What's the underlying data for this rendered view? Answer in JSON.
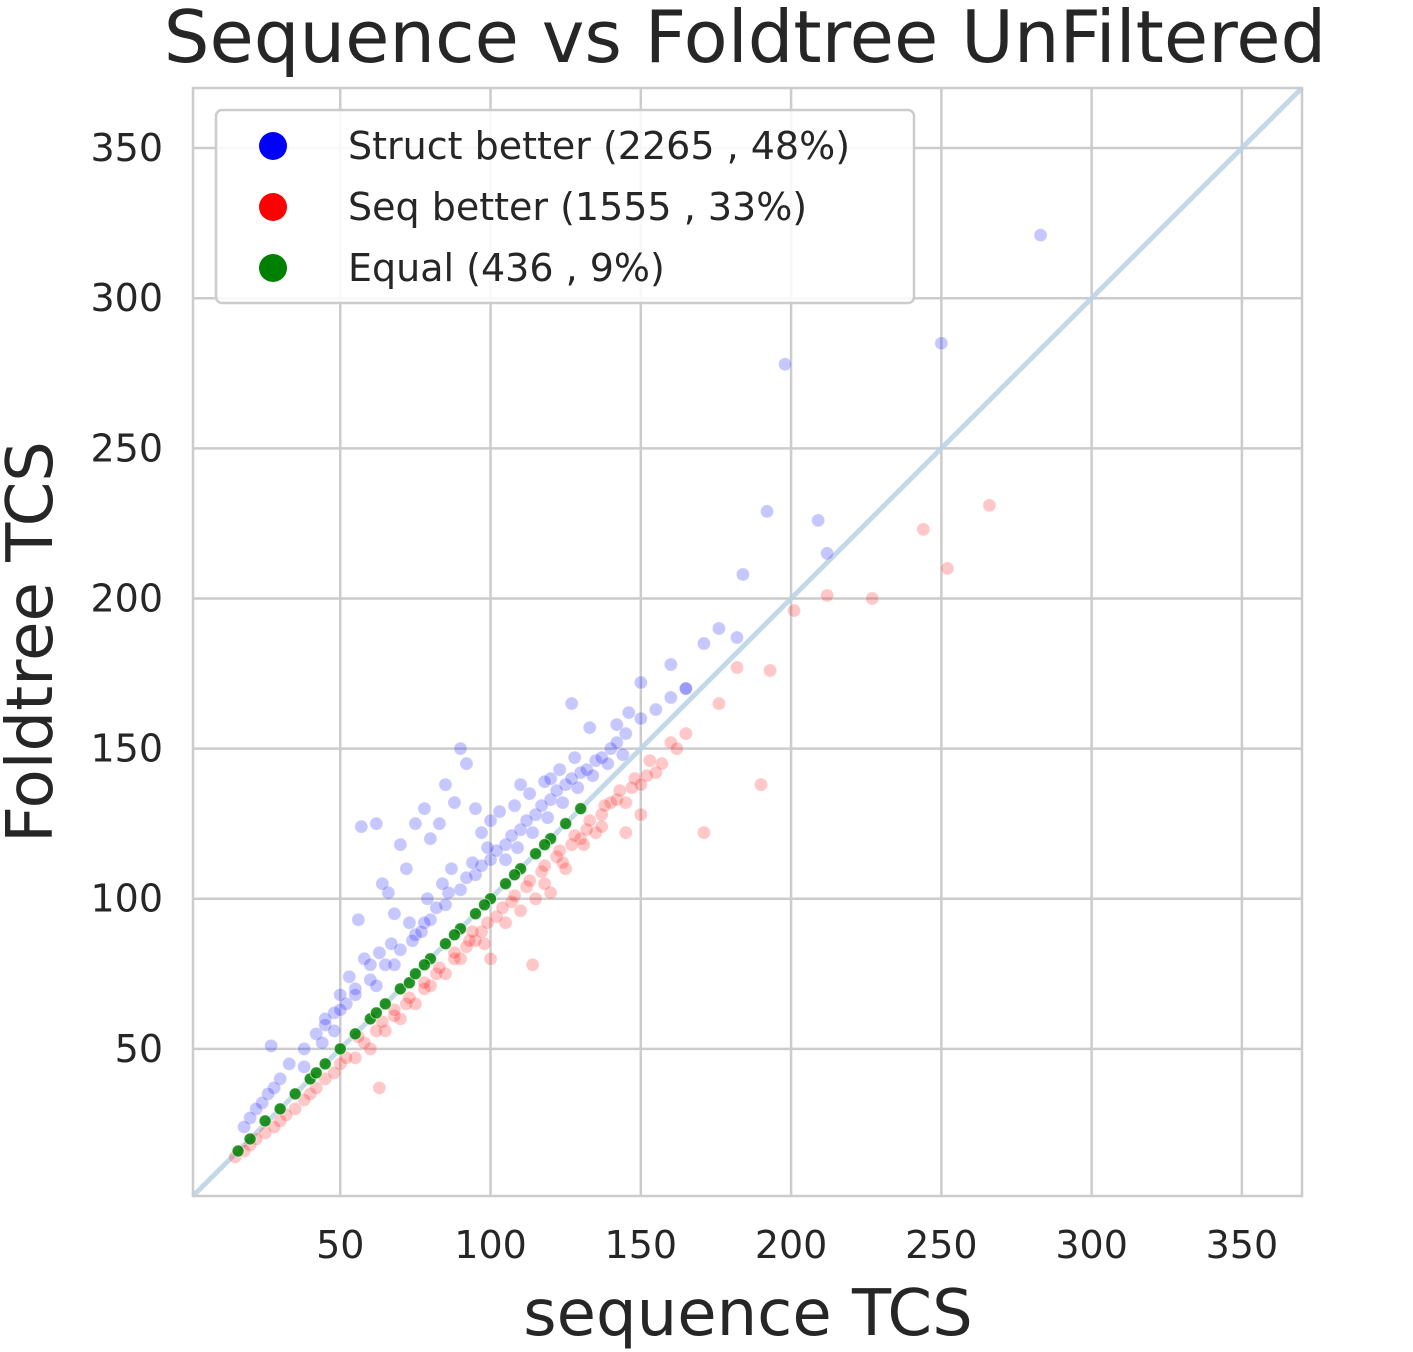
{
  "chart_data": {
    "type": "scatter",
    "title": "Sequence vs Foldtree UnFiltered",
    "xlabel": "sequence TCS",
    "ylabel": "Foldtree TCS",
    "xlim": [
      1,
      370
    ],
    "ylim": [
      1,
      370
    ],
    "xticks": [
      50,
      100,
      150,
      200,
      250,
      300,
      350
    ],
    "yticks": [
      50,
      100,
      150,
      200,
      250,
      300,
      350
    ],
    "grid": true,
    "legend_position": "upper-left",
    "diagonal_line": {
      "from": [
        1,
        1
      ],
      "to": [
        370,
        370
      ],
      "color": "#b8d2e6"
    },
    "series": [
      {
        "name": "Struct better (2265 , 48%)",
        "color": "#0000ff",
        "count": 2265,
        "percent": 48,
        "points": [
          [
            283,
            321
          ],
          [
            250,
            285
          ],
          [
            198,
            278
          ],
          [
            192,
            229
          ],
          [
            209,
            226
          ],
          [
            212,
            215
          ],
          [
            184,
            208
          ],
          [
            182,
            187
          ],
          [
            171,
            185
          ],
          [
            176,
            190
          ],
          [
            165,
            170
          ],
          [
            160,
            178
          ],
          [
            150,
            172
          ],
          [
            146,
            162
          ],
          [
            142,
            158
          ],
          [
            133,
            157
          ],
          [
            127,
            165
          ],
          [
            120,
            140
          ],
          [
            110,
            138
          ],
          [
            100,
            126
          ],
          [
            95,
            130
          ],
          [
            90,
            150
          ],
          [
            92,
            145
          ],
          [
            85,
            138
          ],
          [
            88,
            132
          ],
          [
            83,
            125
          ],
          [
            78,
            130
          ],
          [
            80,
            120
          ],
          [
            75,
            125
          ],
          [
            57,
            124
          ],
          [
            62,
            125
          ],
          [
            70,
            118
          ],
          [
            72,
            110
          ],
          [
            66,
            102
          ],
          [
            64,
            105
          ],
          [
            68,
            95
          ],
          [
            56,
            93
          ],
          [
            58,
            80
          ],
          [
            60,
            78
          ],
          [
            55,
            70
          ],
          [
            52,
            65
          ],
          [
            48,
            62
          ],
          [
            45,
            60
          ],
          [
            42,
            55
          ],
          [
            38,
            50
          ],
          [
            33,
            45
          ],
          [
            30,
            40
          ],
          [
            28,
            37
          ],
          [
            26,
            35
          ],
          [
            24,
            32
          ],
          [
            22,
            30
          ],
          [
            20,
            27
          ],
          [
            18,
            24
          ],
          [
            45,
            58
          ],
          [
            50,
            63
          ],
          [
            55,
            68
          ],
          [
            60,
            73
          ],
          [
            65,
            78
          ],
          [
            70,
            83
          ],
          [
            75,
            88
          ],
          [
            80,
            93
          ],
          [
            85,
            98
          ],
          [
            90,
            103
          ],
          [
            95,
            108
          ],
          [
            100,
            113
          ],
          [
            105,
            118
          ],
          [
            110,
            123
          ],
          [
            115,
            128
          ],
          [
            120,
            133
          ],
          [
            125,
            138
          ],
          [
            130,
            142
          ],
          [
            135,
            146
          ],
          [
            140,
            150
          ],
          [
            145,
            155
          ],
          [
            150,
            160
          ],
          [
            155,
            163
          ],
          [
            160,
            167
          ],
          [
            165,
            170
          ],
          [
            38,
            44
          ],
          [
            44,
            52
          ],
          [
            48,
            56
          ],
          [
            62,
            71
          ],
          [
            68,
            78
          ],
          [
            74,
            86
          ],
          [
            78,
            92
          ],
          [
            82,
            97
          ],
          [
            86,
            102
          ],
          [
            92,
            107
          ],
          [
            97,
            111
          ],
          [
            102,
            116
          ],
          [
            107,
            121
          ],
          [
            112,
            126
          ],
          [
            117,
            131
          ],
          [
            122,
            136
          ],
          [
            127,
            140
          ],
          [
            132,
            143
          ],
          [
            137,
            147
          ],
          [
            142,
            152
          ],
          [
            77,
            89
          ],
          [
            87,
            110
          ],
          [
            97,
            122
          ],
          [
            103,
            129
          ],
          [
            108,
            131
          ],
          [
            113,
            135
          ],
          [
            118,
            139
          ],
          [
            123,
            143
          ],
          [
            128,
            147
          ],
          [
            84,
            105
          ],
          [
            79,
            100
          ],
          [
            73,
            92
          ],
          [
            67,
            85
          ],
          [
            63,
            82
          ],
          [
            53,
            74
          ],
          [
            50,
            68
          ],
          [
            105,
            113
          ],
          [
            109,
            117
          ],
          [
            114,
            122
          ],
          [
            119,
            127
          ],
          [
            124,
            132
          ],
          [
            129,
            137
          ],
          [
            134,
            141
          ],
          [
            139,
            145
          ],
          [
            144,
            148
          ],
          [
            94,
            112
          ],
          [
            99,
            117
          ],
          [
            27,
            51
          ]
        ]
      },
      {
        "name": "Seq better (1555 , 33%)",
        "color": "#ff0000",
        "count": 1555,
        "percent": 33,
        "points": [
          [
            266,
            231
          ],
          [
            244,
            223
          ],
          [
            252,
            210
          ],
          [
            227,
            200
          ],
          [
            212,
            201
          ],
          [
            201,
            196
          ],
          [
            193,
            176
          ],
          [
            190,
            138
          ],
          [
            182,
            177
          ],
          [
            176,
            165
          ],
          [
            171,
            122
          ],
          [
            165,
            155
          ],
          [
            160,
            152
          ],
          [
            155,
            142
          ],
          [
            150,
            128
          ],
          [
            148,
            140
          ],
          [
            140,
            132
          ],
          [
            135,
            122
          ],
          [
            130,
            120
          ],
          [
            125,
            110
          ],
          [
            120,
            102
          ],
          [
            115,
            100
          ],
          [
            114,
            78
          ],
          [
            110,
            96
          ],
          [
            105,
            92
          ],
          [
            100,
            80
          ],
          [
            98,
            85
          ],
          [
            95,
            86
          ],
          [
            90,
            80
          ],
          [
            85,
            75
          ],
          [
            80,
            71
          ],
          [
            75,
            65
          ],
          [
            70,
            60
          ],
          [
            65,
            56
          ],
          [
            63,
            37
          ],
          [
            60,
            50
          ],
          [
            55,
            47
          ],
          [
            50,
            45
          ],
          [
            45,
            40
          ],
          [
            40,
            35
          ],
          [
            35,
            30
          ],
          [
            30,
            26
          ],
          [
            25,
            22
          ],
          [
            20,
            18
          ],
          [
            15,
            14
          ],
          [
            18,
            16
          ],
          [
            22,
            20
          ],
          [
            28,
            24
          ],
          [
            32,
            28
          ],
          [
            38,
            33
          ],
          [
            42,
            37
          ],
          [
            48,
            42
          ],
          [
            52,
            47
          ],
          [
            58,
            52
          ],
          [
            62,
            56
          ],
          [
            68,
            61
          ],
          [
            72,
            65
          ],
          [
            78,
            70
          ],
          [
            82,
            75
          ],
          [
            88,
            80
          ],
          [
            92,
            84
          ],
          [
            97,
            89
          ],
          [
            102,
            94
          ],
          [
            107,
            99
          ],
          [
            112,
            104
          ],
          [
            117,
            109
          ],
          [
            122,
            114
          ],
          [
            127,
            118
          ],
          [
            132,
            123
          ],
          [
            137,
            128
          ],
          [
            142,
            133
          ],
          [
            147,
            137
          ],
          [
            152,
            141
          ],
          [
            157,
            145
          ],
          [
            162,
            150
          ],
          [
            108,
            101
          ],
          [
            113,
            106
          ],
          [
            118,
            111
          ],
          [
            123,
            116
          ],
          [
            128,
            121
          ],
          [
            133,
            126
          ],
          [
            138,
            131
          ],
          [
            143,
            136
          ],
          [
            93,
            86
          ],
          [
            88,
            82
          ],
          [
            83,
            77
          ],
          [
            78,
            72
          ],
          [
            73,
            67
          ],
          [
            68,
            63
          ],
          [
            64,
            59
          ],
          [
            56,
            54
          ],
          [
            104,
            97
          ],
          [
            99,
            92
          ],
          [
            94,
            89
          ],
          [
            118,
            105
          ],
          [
            124,
            112
          ],
          [
            131,
            118
          ],
          [
            137,
            124
          ],
          [
            145,
            132
          ],
          [
            153,
            146
          ],
          [
            145,
            122
          ],
          [
            150,
            138
          ]
        ]
      },
      {
        "name": "Equal (436 , 9%)",
        "color": "#008000",
        "count": 436,
        "percent": 9,
        "points": [
          [
            25,
            26
          ],
          [
            70,
            70
          ],
          [
            73,
            72
          ],
          [
            16,
            16
          ],
          [
            20,
            20
          ],
          [
            30,
            30
          ],
          [
            35,
            35
          ],
          [
            40,
            40
          ],
          [
            45,
            45
          ],
          [
            50,
            50
          ],
          [
            55,
            55
          ],
          [
            60,
            60
          ],
          [
            65,
            65
          ],
          [
            75,
            75
          ],
          [
            80,
            80
          ],
          [
            85,
            85
          ],
          [
            90,
            90
          ],
          [
            95,
            95
          ],
          [
            100,
            100
          ],
          [
            105,
            105
          ],
          [
            110,
            110
          ],
          [
            115,
            115
          ],
          [
            120,
            120
          ],
          [
            125,
            125
          ],
          [
            130,
            130
          ],
          [
            42,
            42
          ],
          [
            62,
            62
          ],
          [
            78,
            78
          ],
          [
            88,
            88
          ],
          [
            98,
            98
          ],
          [
            108,
            108
          ],
          [
            118,
            118
          ]
        ]
      }
    ]
  }
}
